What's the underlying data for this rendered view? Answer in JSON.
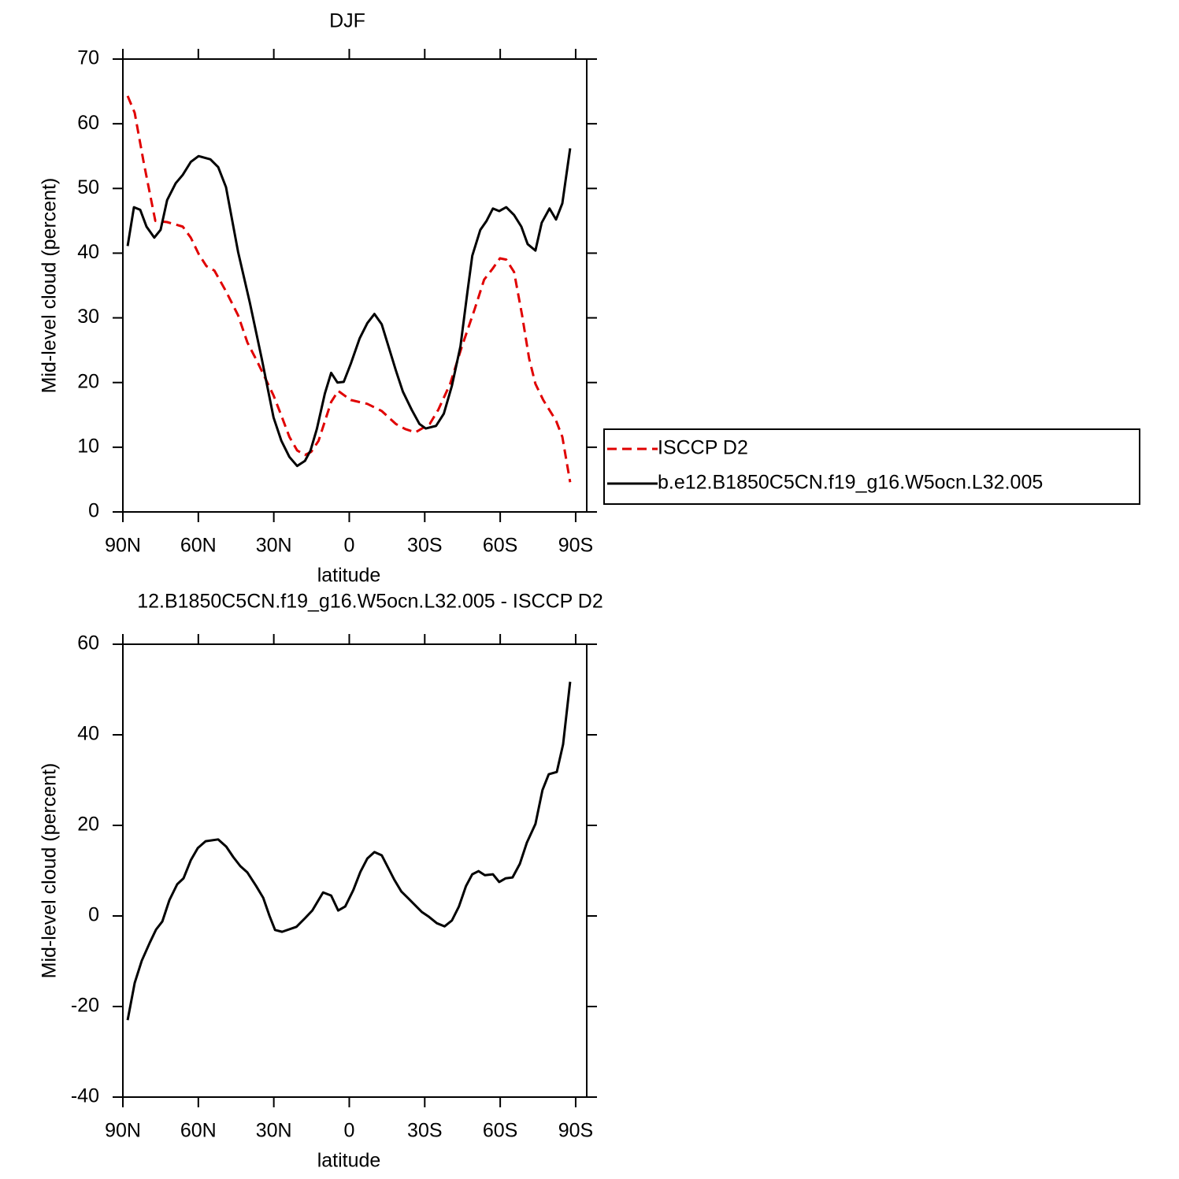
{
  "chart_data": [
    {
      "type": "line",
      "title": "DJF",
      "xlabel": "latitude",
      "ylabel": "Mid-level cloud (percent)",
      "xlim": [
        90,
        -94.4
      ],
      "xticks": [
        {
          "value": 90,
          "label": "90N"
        },
        {
          "value": 60,
          "label": "60N"
        },
        {
          "value": 30,
          "label": "30N"
        },
        0,
        {
          "value": -30,
          "label": "30S"
        },
        {
          "value": -60,
          "label": "60S"
        },
        {
          "value": -90,
          "label": "90S"
        }
      ],
      "ylim": [
        0,
        70
      ],
      "yticks": [
        0,
        10,
        20,
        30,
        40,
        50,
        60,
        70
      ],
      "legend": "right",
      "series": [
        {
          "name": "ISCCP D2",
          "color": "#e00000",
          "style": "dashed",
          "x": [
            88.1,
            85.3,
            81.8,
            79.0,
            77.1,
            72.4,
            66.2,
            63.0,
            59.9,
            56.8,
            53.6,
            49.0,
            44.2,
            40.5,
            36.4,
            30.1,
            27.0,
            23.8,
            20.7,
            17.6,
            15.1,
            12.2,
            9.7,
            7.2,
            4.4,
            -0.6,
            -7.2,
            -12.9,
            -18.5,
            -22.3,
            -26.3,
            -32.0,
            -35.4,
            -40.1,
            -44.8,
            -49.9,
            -53.6,
            -56.8,
            -59.9,
            -62.4,
            -65.5,
            -68.7,
            -71.5,
            -74.0,
            -77.1,
            -82.2,
            -84.7,
            -87.8
          ],
          "values": [
            64.3,
            61.7,
            54.2,
            48.7,
            45.0,
            44.8,
            44.1,
            42.4,
            39.9,
            38.0,
            37.3,
            34.1,
            30.4,
            26.2,
            23.1,
            18.0,
            14.9,
            11.6,
            9.5,
            8.8,
            9.3,
            11.0,
            14.0,
            17.0,
            18.7,
            17.3,
            16.7,
            15.6,
            13.6,
            12.8,
            12.3,
            13.6,
            15.8,
            19.8,
            25.6,
            31.4,
            35.9,
            37.5,
            39.2,
            39.0,
            37.1,
            30.4,
            23.7,
            19.8,
            17.3,
            14.1,
            11.6,
            4.6
          ]
        },
        {
          "name": "b.e12.B1850C5CN.f19_g16.W5ocn.L32.005",
          "color": "#000000",
          "style": "solid",
          "x": [
            88.1,
            85.6,
            83.1,
            80.6,
            77.5,
            75.0,
            72.4,
            69.0,
            66.2,
            63.0,
            59.9,
            55.2,
            52.1,
            49.0,
            44.2,
            39.5,
            34.8,
            30.1,
            27.0,
            23.8,
            20.7,
            17.6,
            15.4,
            12.9,
            9.7,
            7.2,
            4.7,
            2.2,
            -0.6,
            -4.1,
            -7.2,
            -10.0,
            -12.9,
            -18.5,
            -21.3,
            -24.8,
            -27.9,
            -30.4,
            -34.5,
            -37.6,
            -40.8,
            -44.2,
            -47.0,
            -48.9,
            -52.1,
            -54.6,
            -57.1,
            -59.6,
            -62.4,
            -65.5,
            -68.4,
            -70.9,
            -74.0,
            -76.5,
            -79.6,
            -82.2,
            -84.7,
            -87.8
          ],
          "values": [
            41.1,
            47.1,
            46.7,
            44.1,
            42.4,
            43.6,
            48.2,
            50.8,
            52.1,
            54.1,
            55.0,
            54.5,
            53.3,
            50.2,
            40.2,
            32.3,
            23.7,
            14.6,
            11.0,
            8.5,
            7.1,
            7.9,
            9.5,
            12.8,
            18.3,
            21.5,
            20.0,
            20.1,
            22.9,
            26.8,
            29.2,
            30.6,
            29.0,
            21.9,
            18.6,
            15.8,
            13.6,
            12.9,
            13.3,
            15.2,
            19.5,
            25.6,
            34.1,
            39.6,
            43.6,
            45.0,
            46.9,
            46.5,
            47.1,
            45.9,
            44.1,
            41.4,
            40.4,
            44.7,
            46.9,
            45.2,
            47.7,
            56.2
          ]
        }
      ]
    },
    {
      "type": "line",
      "title": "12.B1850C5CN.f19_g16.W5ocn.L32.005 - ISCCP D2",
      "xlabel": "latitude",
      "ylabel": "Mid-level cloud (percent)",
      "xlim": [
        90,
        -94.4
      ],
      "xticks": [
        {
          "value": 90,
          "label": "90N"
        },
        {
          "value": 60,
          "label": "60N"
        },
        {
          "value": 30,
          "label": "30N"
        },
        0,
        {
          "value": -30,
          "label": "30S"
        },
        {
          "value": -60,
          "label": "60S"
        },
        {
          "value": -90,
          "label": "90S"
        }
      ],
      "ylim": [
        -40,
        60
      ],
      "yticks": [
        -40,
        -20,
        0,
        20,
        40,
        60
      ],
      "series": [
        {
          "color": "#000000",
          "style": "solid",
          "x": [
            88.1,
            85.3,
            82.5,
            79.3,
            76.8,
            74.3,
            71.5,
            68.4,
            65.9,
            63.0,
            60.2,
            57.1,
            52.1,
            48.9,
            46.1,
            43.3,
            40.5,
            37.0,
            34.2,
            31.7,
            29.5,
            26.7,
            21.0,
            17.6,
            14.7,
            10.4,
            7.2,
            4.4,
            1.6,
            -1.6,
            -4.4,
            -7.2,
            -10.0,
            -12.9,
            -17.9,
            -20.7,
            -23.8,
            -28.8,
            -31.7,
            -34.8,
            -37.9,
            -40.8,
            -43.6,
            -46.4,
            -48.9,
            -51.4,
            -53.9,
            -57.1,
            -59.6,
            -62.1,
            -64.9,
            -67.8,
            -70.6,
            -74.0,
            -76.8,
            -79.3,
            -82.5,
            -85.0,
            -87.8
          ],
          "values": [
            -23.0,
            -14.8,
            -9.9,
            -5.9,
            -3.0,
            -1.2,
            3.5,
            7.0,
            8.3,
            12.3,
            15.0,
            16.5,
            16.9,
            15.3,
            13.0,
            11.0,
            9.6,
            6.6,
            4.0,
            0,
            -3.1,
            -3.5,
            -2.4,
            -0.5,
            1.2,
            5.2,
            4.5,
            1.2,
            2.1,
            5.7,
            9.7,
            12.7,
            14.1,
            13.4,
            8.0,
            5.4,
            3.7,
            0.9,
            -0.2,
            -1.6,
            -2.3,
            -1.0,
            2.1,
            6.6,
            9.2,
            9.9,
            9.0,
            9.2,
            7.5,
            8.3,
            8.5,
            11.5,
            16.2,
            20.3,
            27.8,
            31.3,
            31.8,
            37.9,
            51.7
          ]
        }
      ]
    }
  ]
}
